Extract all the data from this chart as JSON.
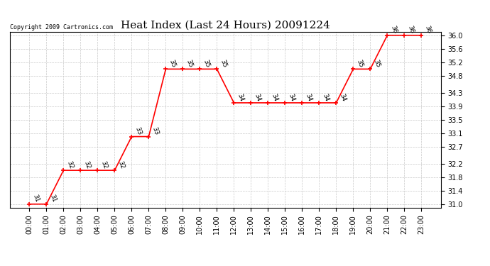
{
  "title": "Heat Index (Last 24 Hours) 20091224",
  "copyright": "Copyright 2009 Cartronics.com",
  "hours": [
    "00:00",
    "01:00",
    "02:00",
    "03:00",
    "04:00",
    "05:00",
    "06:00",
    "07:00",
    "08:00",
    "09:00",
    "10:00",
    "11:00",
    "12:00",
    "13:00",
    "14:00",
    "15:00",
    "16:00",
    "17:00",
    "18:00",
    "19:00",
    "20:00",
    "21:00",
    "22:00",
    "23:00"
  ],
  "values": [
    31,
    31,
    32,
    32,
    32,
    32,
    33,
    33,
    35,
    35,
    35,
    35,
    34,
    34,
    34,
    34,
    34,
    34,
    34,
    35,
    35,
    36,
    36,
    36
  ],
  "ylim_min": 31.0,
  "ylim_max": 36.0,
  "yticks": [
    31.0,
    31.4,
    31.8,
    32.2,
    32.7,
    33.1,
    33.5,
    33.9,
    34.3,
    34.8,
    35.2,
    35.6,
    36.0
  ],
  "line_color": "red",
  "marker_color": "red",
  "bg_color": "white",
  "grid_color": "#c8c8c8",
  "title_fontsize": 11,
  "tick_fontsize": 7,
  "annotation_fontsize": 6.5,
  "copyright_fontsize": 6
}
